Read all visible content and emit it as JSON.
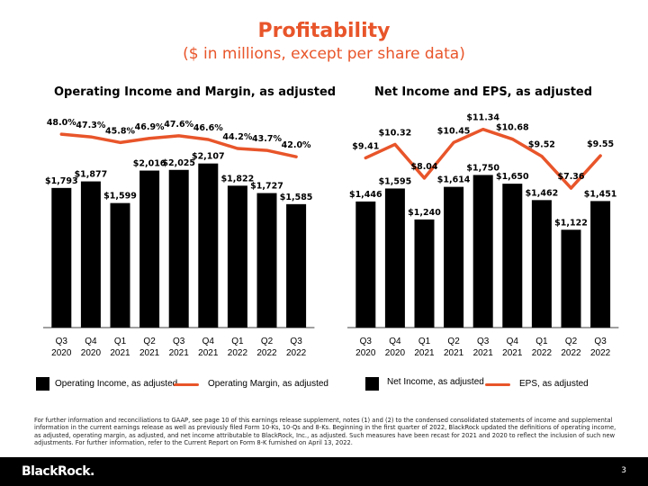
{
  "header": {
    "title": "Profitability",
    "subtitle": "($ in millions, except per share data)"
  },
  "colors": {
    "bar": "#000000",
    "line": "#e8552a",
    "text": "#000000"
  },
  "chart_data": [
    {
      "type": "bar",
      "title": "Operating Income and Margin, as adjusted",
      "categories": [
        "Q3 2020",
        "Q4 2020",
        "Q1 2021",
        "Q2 2021",
        "Q3 2021",
        "Q4 2021",
        "Q1 2022",
        "Q2 2022",
        "Q3 2022"
      ],
      "series": [
        {
          "name": "Operating Income, as adjusted",
          "type": "bar",
          "values": [
            1793,
            1877,
            1599,
            2016,
            2025,
            2107,
            1822,
            1727,
            1585
          ],
          "labels": [
            "$1,793",
            "$1,877",
            "$1,599",
            "$2,016",
            "$2,025",
            "$2,107",
            "$1,822",
            "$1,727",
            "$1,585"
          ]
        },
        {
          "name": "Operating Margin, as adjusted",
          "type": "line",
          "values": [
            48.0,
            47.3,
            45.8,
            46.9,
            47.6,
            46.6,
            44.2,
            43.7,
            42.0
          ],
          "labels": [
            "48.0%",
            "47.3%",
            "45.8%",
            "46.9%",
            "47.6%",
            "46.6%",
            "44.2%",
            "43.7%",
            "42.0%"
          ]
        }
      ],
      "ylim": [
        0,
        2600
      ],
      "y2lim": [
        25,
        55
      ],
      "legend": "bottom",
      "grid": false
    },
    {
      "type": "bar",
      "title": "Net Income and EPS, as adjusted",
      "categories": [
        "Q3 2020",
        "Q4 2020",
        "Q1 2021",
        "Q2 2021",
        "Q3 2021",
        "Q4 2021",
        "Q1 2022",
        "Q2 2022",
        "Q3 2022"
      ],
      "series": [
        {
          "name": "Net Income, as adjusted",
          "type": "bar",
          "values": [
            1446,
            1595,
            1240,
            1614,
            1750,
            1650,
            1462,
            1122,
            1451
          ],
          "labels": [
            "$1,446",
            "$1,595",
            "$1,240",
            "$1,614",
            "$1,750",
            "$1,650",
            "$1,462",
            "$1,122",
            "$1,451"
          ]
        },
        {
          "name": "EPS, as adjusted",
          "type": "line",
          "values": [
            9.41,
            10.32,
            8.04,
            10.45,
            11.34,
            10.68,
            9.52,
            7.36,
            9.55
          ],
          "labels": [
            "$9.41",
            "$10.32",
            "$8.04",
            "$10.45",
            "$11.34",
            "$10.68",
            "$9.52",
            "$7.36",
            "$9.55"
          ]
        }
      ],
      "ylim": [
        0,
        2250
      ],
      "y2lim": [
        0,
        14
      ],
      "legend": "bottom",
      "grid": false
    }
  ],
  "footnote": "For further information and reconciliations to GAAP, see page 10 of this earnings release supplement, notes (1) and (2) to the condensed consolidated statements of income and supplemental information in the current earnings release as well as previously filed Form 10-Ks, 10-Qs and 8-Ks. Beginning in the first quarter of 2022, BlackRock updated the definitions of operating income, as adjusted, operating margin, as adjusted, and net income attributable to BlackRock, Inc., as adjusted. Such measures have been recast for 2021 and 2020 to reflect the inclusion of such new adjustments. For further information, refer to the Current Report on Form 8-K furnished on April 13, 2022.",
  "footer": {
    "logo": "BlackRock.",
    "page": "3"
  }
}
